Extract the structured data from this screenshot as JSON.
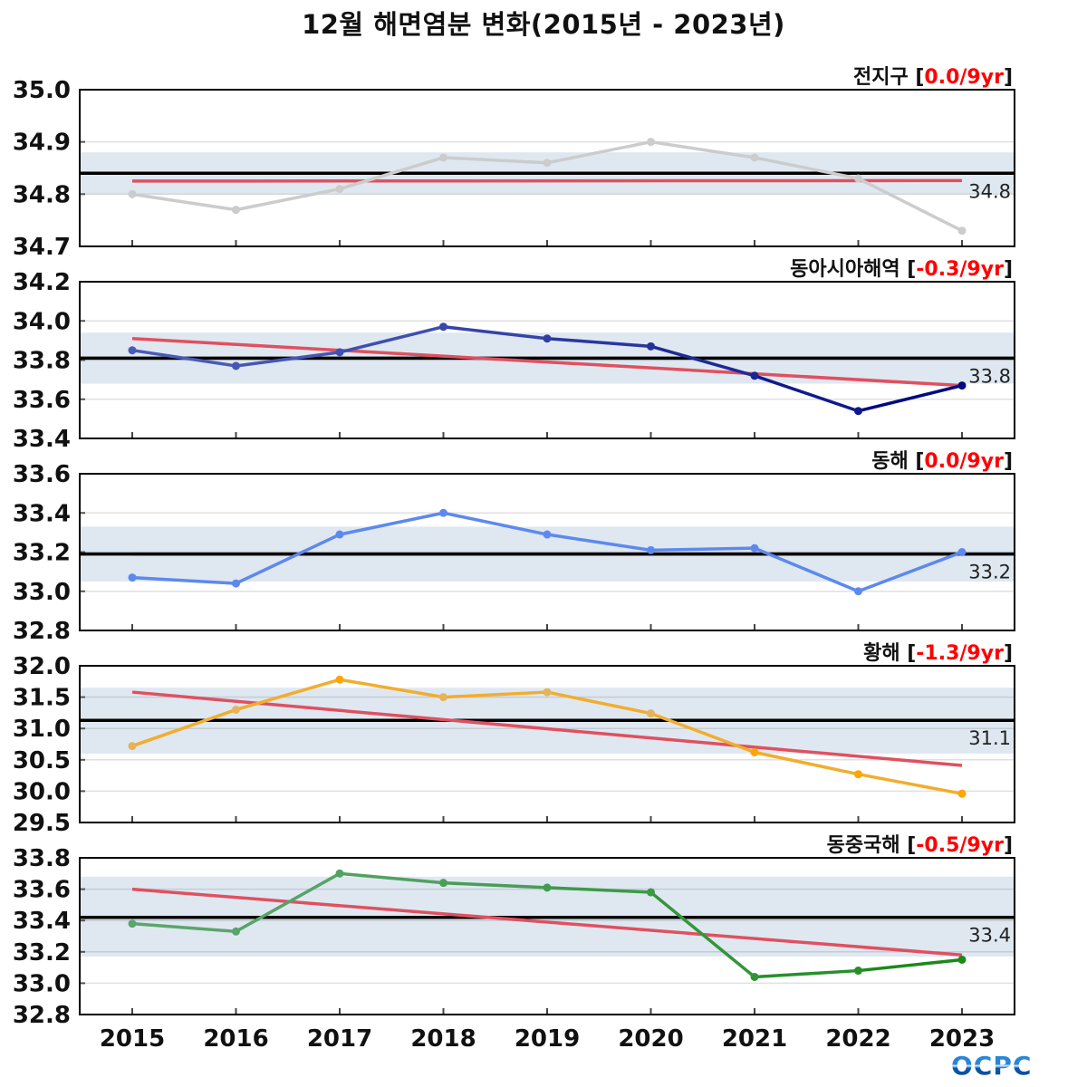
{
  "title": "12월 해면염분 변화(2015년 - 2023년)",
  "logo": "OCPC",
  "chart_data": {
    "type": "line",
    "title": "12월 해면염분 변화(2015년 - 2023년)",
    "x": [
      2015,
      2016,
      2017,
      2018,
      2019,
      2020,
      2021,
      2022,
      2023
    ],
    "xtick_labels": [
      "2015",
      "2016",
      "2017",
      "2018",
      "2019",
      "2020",
      "2021",
      "2022",
      "2023"
    ],
    "xlabel": "",
    "ylabel": "",
    "grid": true,
    "colors": {
      "mean": "#000000",
      "trend": "#e05060",
      "band": "#dfe8f1",
      "trend_text": "#ff0000"
    },
    "panels": [
      {
        "name": "전지구",
        "trend_label": "0.0/9yr",
        "ylim": [
          34.7,
          35.0
        ],
        "yticks": [
          34.7,
          34.8,
          34.9,
          35.0
        ],
        "ytick_labels": [
          "34.7",
          "34.8",
          "34.9",
          "35.0"
        ],
        "values": [
          34.8,
          34.77,
          34.81,
          34.87,
          34.86,
          34.9,
          34.87,
          34.83,
          34.73
        ],
        "color_light": "#cccccc",
        "color_dark": "#cccccc",
        "mean": 34.84,
        "mean_label": "34.8",
        "band": [
          34.8,
          34.88
        ],
        "trend_line": [
          34.825,
          34.826
        ]
      },
      {
        "name": "동아시아해역",
        "trend_label": "-0.3/9yr",
        "ylim": [
          33.4,
          34.2
        ],
        "yticks": [
          33.4,
          33.6,
          33.8,
          34.0,
          34.2
        ],
        "ytick_labels": [
          "33.4",
          "33.6",
          "33.8",
          "34.0",
          "34.2"
        ],
        "values": [
          33.85,
          33.77,
          33.84,
          33.97,
          33.91,
          33.87,
          33.72,
          33.54,
          33.67
        ],
        "color_light": "#4a5ab8",
        "color_dark": "#000a80",
        "mean": 33.81,
        "mean_label": "33.8",
        "band": [
          33.68,
          33.94
        ],
        "trend_line": [
          33.91,
          33.67
        ]
      },
      {
        "name": "동해",
        "trend_label": "0.0/9yr",
        "ylim": [
          32.8,
          33.6
        ],
        "yticks": [
          32.8,
          33.0,
          33.2,
          33.4,
          33.6
        ],
        "ytick_labels": [
          "32.8",
          "33.0",
          "33.2",
          "33.4",
          "33.6"
        ],
        "values": [
          33.07,
          33.04,
          33.29,
          33.4,
          33.29,
          33.21,
          33.22,
          33.0,
          33.2
        ],
        "color_light": "#6f98f0",
        "color_dark": "#4a7aee",
        "mean": 33.19,
        "mean_label": "33.2",
        "band": [
          33.05,
          33.33
        ],
        "trend_line": [
          33.19,
          33.19
        ]
      },
      {
        "name": "황해",
        "trend_label": "-1.3/9yr",
        "ylim": [
          29.5,
          32.0
        ],
        "yticks": [
          29.5,
          30.0,
          30.5,
          31.0,
          31.5,
          32.0
        ],
        "ytick_labels": [
          "29.5",
          "30.0",
          "30.5",
          "31.0",
          "31.5",
          "32.0"
        ],
        "values": [
          30.72,
          31.3,
          31.78,
          31.5,
          31.58,
          31.24,
          30.62,
          30.27,
          29.96
        ],
        "color_light": "#e5b45a",
        "color_dark": "#ffa500",
        "mean": 31.13,
        "mean_label": "31.1",
        "band": [
          30.6,
          31.65
        ],
        "trend_line": [
          31.58,
          30.41
        ]
      },
      {
        "name": "동중국해",
        "trend_label": "-0.5/9yr",
        "ylim": [
          32.8,
          33.8
        ],
        "yticks": [
          32.8,
          33.0,
          33.2,
          33.4,
          33.6,
          33.8
        ],
        "ytick_labels": [
          "32.8",
          "33.0",
          "33.2",
          "33.4",
          "33.6",
          "33.8"
        ],
        "values": [
          33.38,
          33.33,
          33.7,
          33.64,
          33.61,
          33.58,
          33.04,
          33.08,
          33.15
        ],
        "color_light": "#5ba56e",
        "color_dark": "#1a8a1a",
        "mean": 33.42,
        "mean_label": "33.4",
        "band": [
          33.17,
          33.68
        ],
        "trend_line": [
          33.6,
          33.18
        ]
      }
    ]
  }
}
